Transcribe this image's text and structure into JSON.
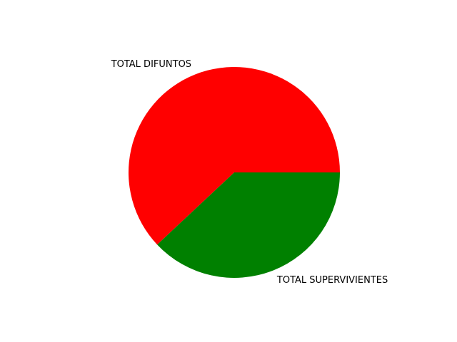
{
  "chart_data": {
    "type": "pie",
    "labels": [
      "TOTAL DIFUNTOS",
      "TOTAL SUPERVIVIENTES"
    ],
    "values": [
      62,
      38
    ],
    "colors": [
      "#ff0000",
      "#008000"
    ],
    "start_angle_deg": 0,
    "direction": "counterclockwise"
  }
}
